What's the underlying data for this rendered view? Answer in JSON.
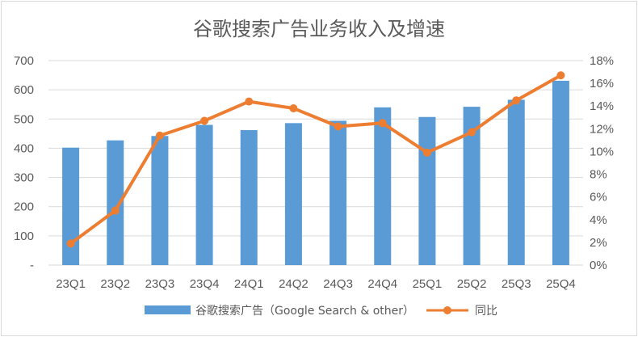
{
  "chart_data": {
    "type": "bar",
    "title": "谷歌搜索广告业务收入及增速",
    "categories": [
      "23Q1",
      "23Q2",
      "23Q3",
      "23Q4",
      "24Q1",
      "24Q2",
      "24Q3",
      "24Q4",
      "25Q1",
      "25Q2",
      "25Q3",
      "25Q4"
    ],
    "series": [
      {
        "name": "谷歌搜索广告（Google Search & other）",
        "type": "bar",
        "axis": "left",
        "color": "#5b9bd5",
        "values": [
          402,
          427,
          442,
          480,
          462,
          486,
          494,
          540,
          507,
          542,
          566,
          631
        ]
      },
      {
        "name": "同比",
        "type": "line",
        "axis": "right",
        "color": "#ed7d31",
        "values": [
          1.9,
          4.8,
          11.4,
          12.7,
          14.4,
          13.8,
          12.2,
          12.5,
          9.9,
          11.7,
          14.5,
          16.7
        ]
      }
    ],
    "ylim_left": [
      0,
      700
    ],
    "ylim_right": [
      0,
      18
    ],
    "y_left_ticks": [
      "-",
      "100",
      "200",
      "300",
      "400",
      "500",
      "600",
      "700"
    ],
    "y_right_ticks": [
      "0%",
      "2%",
      "4%",
      "6%",
      "8%",
      "10%",
      "12%",
      "14%",
      "16%",
      "18%"
    ],
    "grid": true,
    "legend_position": "bottom"
  }
}
